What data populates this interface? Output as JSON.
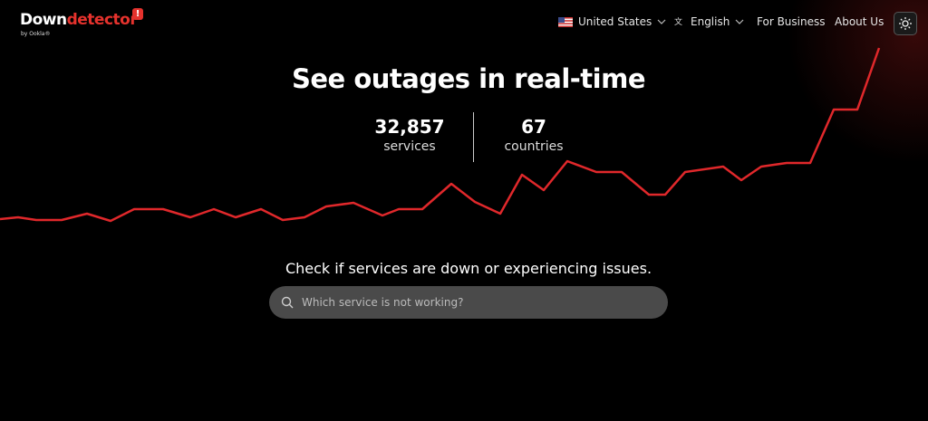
{
  "header": {
    "logo": {
      "word1": "Down",
      "word2": "detector",
      "byline": "by Ookla®"
    },
    "nav": {
      "country": "United States",
      "language": "English",
      "business": "For Business",
      "about": "About Us"
    }
  },
  "hero": {
    "title": "See outages in real-time",
    "stats": [
      {
        "number": "32,857",
        "label": "services"
      },
      {
        "number": "67",
        "label": "countries"
      }
    ],
    "prompt": "Check if services are down or experiencing issues.",
    "search_placeholder": "Which service is not working?"
  }
}
